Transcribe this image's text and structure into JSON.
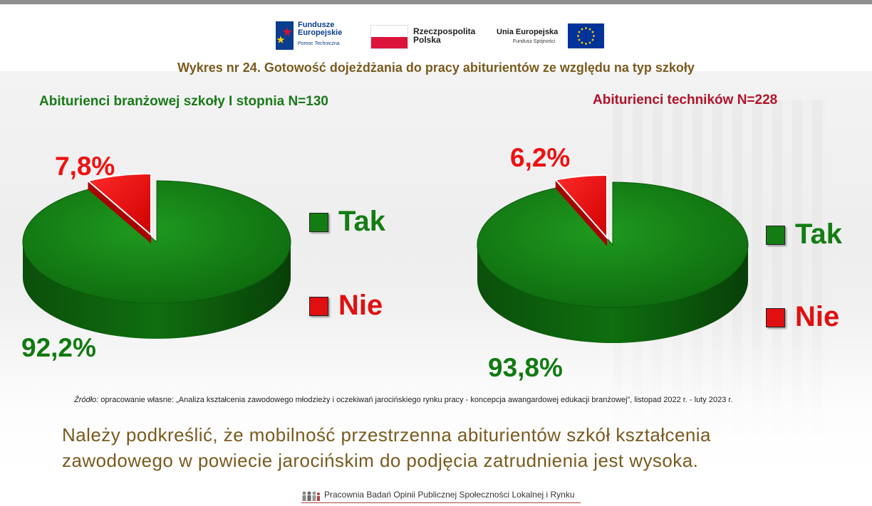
{
  "logos": {
    "fe_title": "Fundusze Europejskie",
    "fe_subtitle": "Pomoc Techniczna",
    "pl_title": "Rzeczpospolita Polska",
    "eu_title": "Unia Europejska",
    "eu_subtitle": "Fundusz Spójności"
  },
  "colors": {
    "tak": "#137d13",
    "nie": "#e01010",
    "title": "#7a5a1e"
  },
  "chart_data": [
    {
      "type": "pie",
      "title": "Wykres nr 24. Gotowość dojeżdżania do pracy abiturientów ze względu na typ szkoły",
      "subtitle": "Abiturienci branżowej szkoły I stopnia N=130",
      "legend": "right",
      "slices": [
        {
          "label": "Tak",
          "value": 92.2,
          "display": "92,2%"
        },
        {
          "label": "Nie",
          "value": 7.8,
          "display": "7,8%"
        }
      ]
    },
    {
      "type": "pie",
      "subtitle": "Abiturienci techników  N=228",
      "legend": "right",
      "slices": [
        {
          "label": "Tak",
          "value": 93.8,
          "display": "93,8%"
        },
        {
          "label": "Nie",
          "value": 6.2,
          "display": "6,2%"
        }
      ]
    }
  ],
  "source": {
    "label": "Źródło:",
    "text": " opracowanie własne: „Analiza kształcenia zawodowego młodzieży i oczekiwań jarocińskiego rynku pracy - koncepcja awangardowej edukacji branżowej”, listopad 2022 r. - luty 2023 r."
  },
  "conclusion": "Należy podkreślić, że mobilność przestrzenna abiturientów szkół kształcenia zawodowego w powiecie jarocińskim  do podjęcia zatrudnienia jest wysoka.",
  "footer": "Pracownia Badań Opinii Publicznej Społeczności Lokalnej i Rynku"
}
